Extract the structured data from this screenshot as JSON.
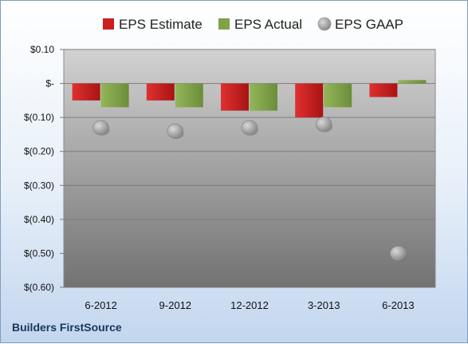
{
  "company": "Builders FirstSource",
  "colors": {
    "estimate": "#cc1f1f",
    "actual": "#7fa24a",
    "gaap": "#a6a6a6"
  },
  "chart_data": {
    "type": "bar",
    "categories": [
      "6-2012",
      "9-2012",
      "12-2012",
      "3-2013",
      "6-2013"
    ],
    "series": [
      {
        "name": "EPS Estimate",
        "kind": "bar",
        "values": [
          -0.05,
          -0.05,
          -0.08,
          -0.1,
          -0.04
        ]
      },
      {
        "name": "EPS Actual",
        "kind": "bar",
        "values": [
          -0.07,
          -0.07,
          -0.08,
          -0.07,
          0.01
        ]
      },
      {
        "name": "EPS GAAP",
        "kind": "scatter",
        "values": [
          -0.13,
          -0.14,
          -0.13,
          -0.12,
          -0.5
        ]
      }
    ],
    "ylim": [
      -0.6,
      0.1
    ],
    "yticks": [
      0.1,
      0,
      -0.1,
      -0.2,
      -0.3,
      -0.4,
      -0.5,
      -0.6
    ],
    "ytick_labels": [
      "$0.10",
      "$-",
      "$(0.10)",
      "$(0.20)",
      "$(0.30)",
      "$(0.40)",
      "$(0.50)",
      "$(0.60)"
    ],
    "grid": true,
    "legend": "top"
  }
}
